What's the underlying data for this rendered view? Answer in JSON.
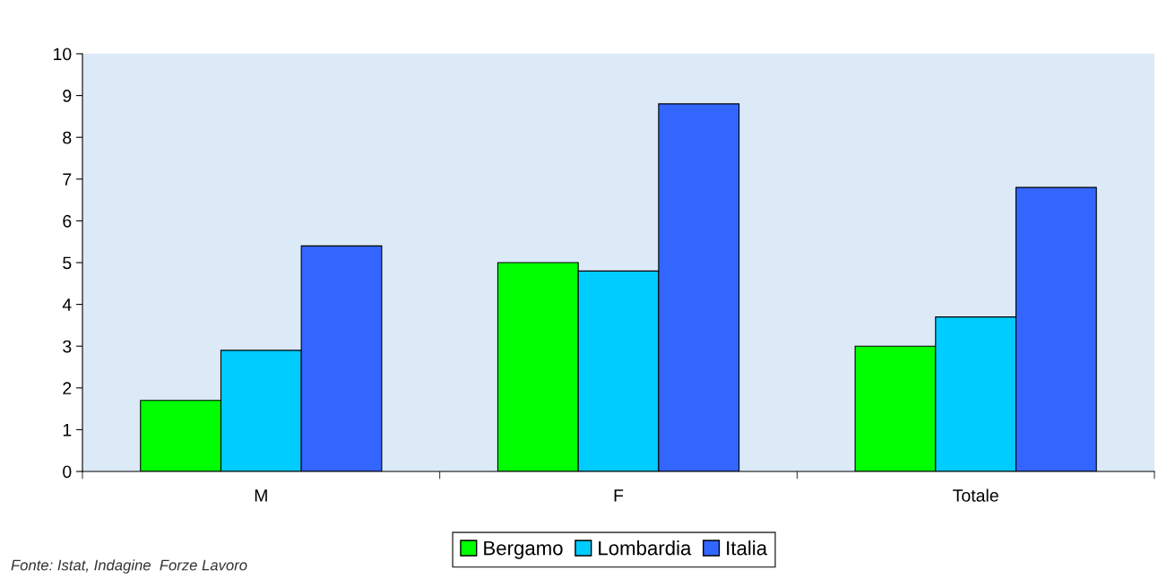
{
  "chart_data": {
    "type": "bar",
    "categories": [
      "M",
      "F",
      "Totale"
    ],
    "series": [
      {
        "name": "Bergamo",
        "color": "#00ff00",
        "values": [
          1.7,
          5.0,
          3.0
        ]
      },
      {
        "name": "Lombardia",
        "color": "#00ccff",
        "values": [
          2.9,
          4.8,
          3.7
        ]
      },
      {
        "name": "Italia",
        "color": "#3366ff",
        "values": [
          5.4,
          8.8,
          6.8
        ]
      }
    ],
    "ylim": [
      0,
      10
    ],
    "yticks": [
      0,
      1,
      2,
      3,
      4,
      5,
      6,
      7,
      8,
      9,
      10
    ],
    "grid": false,
    "legend": "bottom",
    "annotations": [
      "Fonte: Istat, Indagine  Forze Lavoro"
    ]
  }
}
